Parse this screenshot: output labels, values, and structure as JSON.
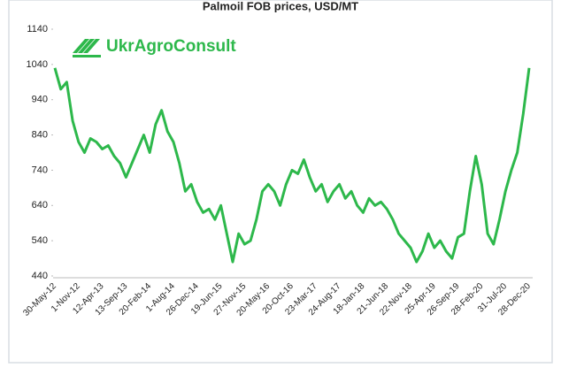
{
  "chart_data": {
    "type": "line",
    "title": "Palmoil FOB prices, USD/MT",
    "annotation": "UkrAgroConsult",
    "categories": [
      "30-May-12",
      null,
      null,
      null,
      "1-Nov-12",
      null,
      null,
      null,
      "12-Apr-13",
      null,
      null,
      null,
      "13-Sep-13",
      null,
      null,
      null,
      "20-Feb-14",
      null,
      null,
      null,
      "1-Aug-14",
      null,
      null,
      null,
      "26-Dec-14",
      null,
      null,
      null,
      "19-Jun-15",
      null,
      null,
      null,
      "27-Nov-15",
      null,
      null,
      null,
      "20-May-16",
      null,
      null,
      null,
      "20-Oct-16",
      null,
      null,
      null,
      "23-Mar-17",
      null,
      null,
      null,
      "24-Aug-17",
      null,
      null,
      null,
      "18-Jan-18",
      null,
      null,
      null,
      "21-Jun-18",
      null,
      null,
      null,
      "22-Nov-18",
      null,
      null,
      null,
      "25-Apr-19",
      null,
      null,
      null,
      "26-Sep-19",
      null,
      null,
      null,
      "28-Feb-20",
      null,
      null,
      null,
      "31-Jul-20",
      null,
      null,
      null,
      "28-Dec-20"
    ],
    "values": [
      1030,
      970,
      990,
      880,
      820,
      790,
      830,
      820,
      800,
      810,
      780,
      760,
      720,
      760,
      800,
      840,
      790,
      870,
      910,
      850,
      820,
      760,
      680,
      700,
      650,
      620,
      630,
      600,
      640,
      560,
      480,
      560,
      530,
      540,
      600,
      680,
      700,
      680,
      640,
      700,
      740,
      730,
      770,
      720,
      680,
      700,
      650,
      680,
      700,
      660,
      680,
      640,
      620,
      660,
      640,
      650,
      630,
      600,
      560,
      540,
      520,
      480,
      510,
      560,
      520,
      540,
      510,
      490,
      550,
      560,
      680,
      780,
      700,
      560,
      530,
      600,
      680,
      740,
      790,
      900,
      1030
    ],
    "color": "#2db84b",
    "ylim": [
      440,
      1140
    ],
    "yticks": [
      440,
      540,
      640,
      740,
      840,
      940,
      1040,
      1140
    ]
  }
}
